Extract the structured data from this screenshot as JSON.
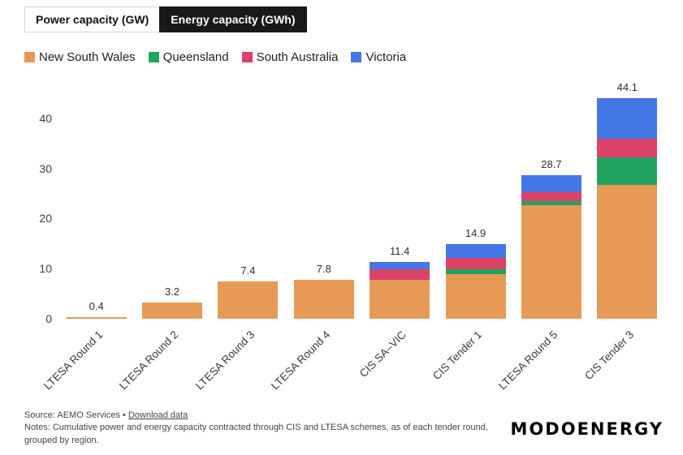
{
  "tabs": [
    {
      "label": "Power capacity (GW)",
      "active": false
    },
    {
      "label": "Energy capacity (GWh)",
      "active": true
    }
  ],
  "legend": [
    {
      "label": "New South Wales",
      "color": "#E79A56"
    },
    {
      "label": "Queensland",
      "color": "#22A45F"
    },
    {
      "label": "South Australia",
      "color": "#DD4268"
    },
    {
      "label": "Victoria",
      "color": "#4377E6"
    }
  ],
  "chart_data": {
    "type": "bar",
    "stacked": true,
    "title": "",
    "xlabel": "",
    "ylabel": "",
    "categories": [
      "LTESA Round 1",
      "LTESA Round 2",
      "LTESA Round 3",
      "LTESA Round 4",
      "CIS SA–VIC",
      "CIS Tender 1",
      "LTESA Round 5",
      "CIS Tender 3"
    ],
    "series": [
      {
        "name": "New South Wales",
        "color": "#E79A56",
        "values": [
          0.4,
          3.2,
          7.4,
          7.8,
          7.8,
          8.9,
          22.7,
          26.7
        ]
      },
      {
        "name": "Queensland",
        "color": "#22A45F",
        "values": [
          0,
          0,
          0,
          0,
          0,
          1.0,
          0.7,
          5.5
        ]
      },
      {
        "name": "South Australia",
        "color": "#DD4268",
        "values": [
          0,
          0,
          0,
          0,
          2.0,
          2.3,
          1.9,
          3.8
        ]
      },
      {
        "name": "Victoria",
        "color": "#4377E6",
        "values": [
          0,
          0,
          0,
          0,
          1.6,
          2.7,
          3.4,
          8.1
        ]
      }
    ],
    "totals": [
      0.4,
      3.2,
      7.4,
      7.8,
      11.4,
      14.9,
      28.7,
      44.1
    ],
    "yticks": [
      0,
      10,
      20,
      30,
      40
    ],
    "ylim": [
      0,
      45
    ],
    "grid": false,
    "legend_position": "top-left"
  },
  "footer": {
    "source_prefix": "Source: AEMO Services • ",
    "download_label": "Download data",
    "notes_line1": "Notes: Cumulative power and energy capacity contracted through CIS and LTESA schemes, as of each tender round,",
    "notes_line2": "grouped by region."
  },
  "logo": "MODOENERGY"
}
